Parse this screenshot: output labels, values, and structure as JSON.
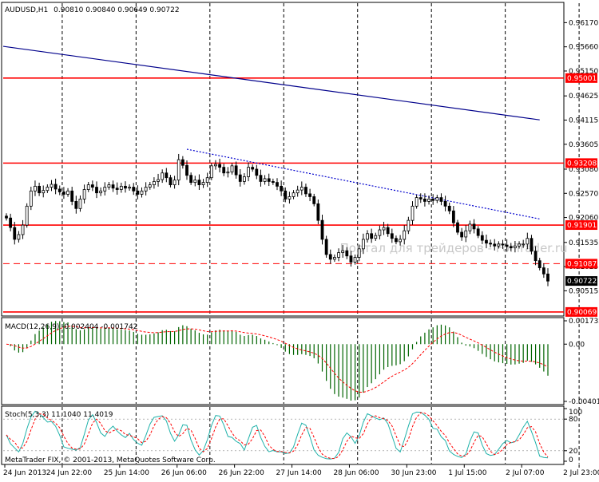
{
  "chart_data": [
    {
      "type": "candlestick",
      "panel": "price",
      "symbol_header": "AUDUSD,H1",
      "ohlc_header": "0.90810 0.90840 0.90649 0.90722",
      "watermark": "Портал для трейдеров - ForTrader.ru",
      "y_ticks": [
        0.9617,
        0.9566,
        0.9515,
        0.94625,
        0.94115,
        0.93605,
        0.9308,
        0.9257,
        0.9206,
        0.91535,
        0.91025,
        0.90515
      ],
      "y_tick_labels": [
        "0.96170",
        "0.95660",
        "0.95150",
        "0.94625",
        "0.94115",
        "0.93605",
        "0.93080",
        "0.92570",
        "0.92060",
        "0.91535",
        "0.91025",
        "0.90515"
      ],
      "ylim": [
        0.9,
        0.9658
      ],
      "horizontal_levels": [
        {
          "value": 0.95001,
          "label": "0.95001",
          "style": "solid"
        },
        {
          "value": 0.93208,
          "label": "0.93208",
          "style": "solid"
        },
        {
          "value": 0.91901,
          "label": "0.91901",
          "style": "solid"
        },
        {
          "value": 0.91087,
          "label": "0.91087",
          "style": "dashed"
        },
        {
          "value": 0.90069,
          "label": "0.90069",
          "style": "solid"
        }
      ],
      "current_price": {
        "value": 0.90722,
        "label": "0.90722"
      },
      "trendlines": [
        {
          "from_bar": 0,
          "from_value": 0.9567,
          "to_bar": 130,
          "to_value": 0.9412,
          "style": "solid"
        },
        {
          "from_bar": 44,
          "from_value": 0.935,
          "to_bar": 130,
          "to_value": 0.9203,
          "style": "dotted"
        }
      ],
      "x_tick_labels": [
        "24 Jun 2013",
        "24 Jun 22:00",
        "25 Jun 14:00",
        "26 Jun 06:00",
        "26 Jun 22:00",
        "27 Jun 14:00",
        "28 Jun 06:00",
        "30 Jun 23:00",
        "1 Jul 15:00",
        "2 Jul 07:00",
        "2 Jul 23:00"
      ],
      "x_tick_bars": [
        0,
        14,
        28,
        42,
        56,
        70,
        84,
        98,
        112,
        126,
        140
      ],
      "period_separator_bars": [
        14,
        32,
        50,
        68,
        86,
        104,
        122,
        140
      ],
      "closes": [
        0.9205,
        0.9185,
        0.916,
        0.917,
        0.919,
        0.923,
        0.9262,
        0.9272,
        0.9258,
        0.9263,
        0.927,
        0.9276,
        0.9266,
        0.926,
        0.9255,
        0.9262,
        0.924,
        0.9225,
        0.9245,
        0.9265,
        0.9275,
        0.927,
        0.9258,
        0.9262,
        0.927,
        0.9275,
        0.9268,
        0.9265,
        0.9272,
        0.9268,
        0.927,
        0.9262,
        0.9255,
        0.9262,
        0.927,
        0.9275,
        0.9282,
        0.9286,
        0.93,
        0.929,
        0.9275,
        0.9285,
        0.9328,
        0.9316,
        0.9295,
        0.928,
        0.9285,
        0.9275,
        0.928,
        0.929,
        0.9315,
        0.9318,
        0.9312,
        0.93,
        0.9302,
        0.9315,
        0.9296,
        0.9282,
        0.9292,
        0.9312,
        0.9308,
        0.9295,
        0.9282,
        0.9288,
        0.9282,
        0.928,
        0.9272,
        0.9262,
        0.9245,
        0.925,
        0.9258,
        0.9264,
        0.927,
        0.9256,
        0.925,
        0.9235,
        0.92,
        0.916,
        0.9128,
        0.9118,
        0.9122,
        0.9132,
        0.9136,
        0.9125,
        0.9112,
        0.9122,
        0.914,
        0.916,
        0.9172,
        0.9162,
        0.9168,
        0.918,
        0.9185,
        0.9172,
        0.9162,
        0.9155,
        0.916,
        0.9178,
        0.92,
        0.923,
        0.9248,
        0.9245,
        0.924,
        0.9245,
        0.9242,
        0.9248,
        0.924,
        0.923,
        0.922,
        0.9195,
        0.9175,
        0.9165,
        0.9178,
        0.9192,
        0.9182,
        0.9168,
        0.9158,
        0.9152,
        0.915,
        0.9146,
        0.915,
        0.9148,
        0.9145,
        0.9142,
        0.9146,
        0.915,
        0.915,
        0.9162,
        0.9135,
        0.9115,
        0.91,
        0.9087,
        0.9072
      ],
      "bar_count": 133
    },
    {
      "type": "histogram+line",
      "panel": "macd",
      "header": "MACD(12,26,9) -0.002404 -0.001742",
      "y_tick_labels": [
        "0.001732",
        "0.00",
        "-0.004014"
      ],
      "ylim": [
        -0.004014,
        0.001732
      ]
    },
    {
      "type": "line",
      "panel": "stochastic",
      "header": "Stoch(5,3,3) 11.1040 11.4019",
      "y_tick_labels": [
        "100",
        "80",
        "20",
        "0"
      ],
      "ylim": [
        0,
        100
      ],
      "levels": [
        80,
        20
      ]
    }
  ],
  "footer": {
    "copyright": "MetaTrader FIX, © 2001-2013, MetaQuotes Software Corp."
  },
  "colors": {
    "background": "#ffffff",
    "axis": "#000000",
    "grid": "#000000",
    "level_line": "#ff0000",
    "trendline_main": "#00008b",
    "trendline_dotted": "#0000cd",
    "macd_histogram": "#006400",
    "macd_signal": "#ff0000",
    "stoch_main": "#20b2aa",
    "stoch_signal": "#ff0000",
    "price_label_bg": "#ff0000",
    "current_label_bg": "#000000",
    "watermark": "#c8c8c8"
  }
}
